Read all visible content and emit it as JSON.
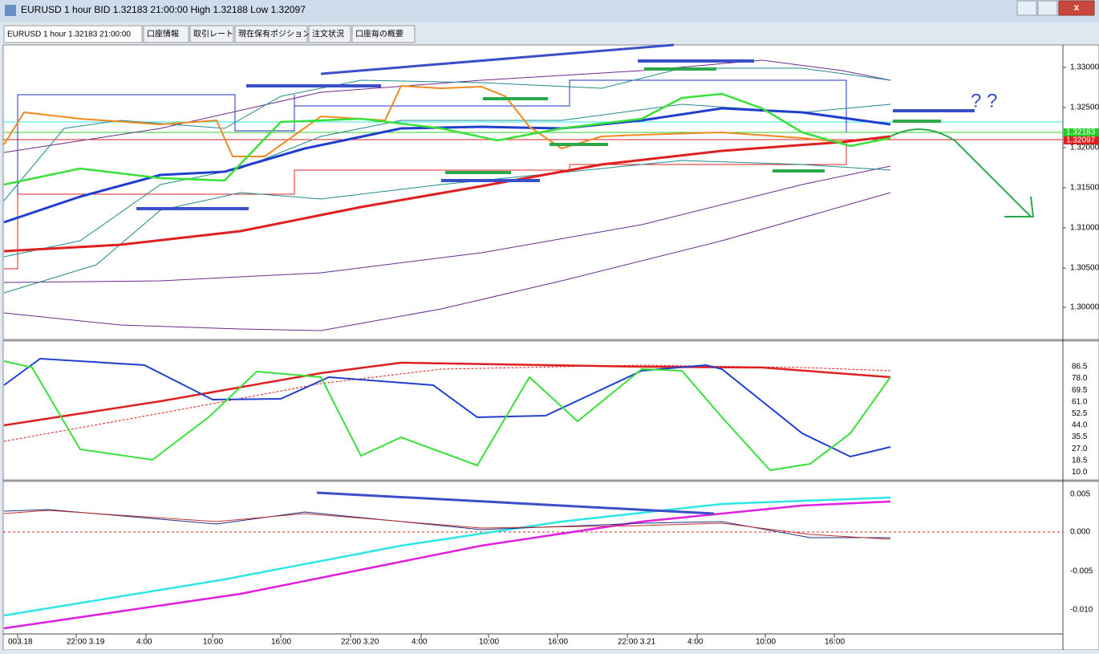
{
  "window": {
    "title": "EURUSD 1 hour BID 1.32183 21:00:00 High 1.32188 Low 1.32097"
  },
  "tabs": [
    "EURUSD 1 hour 1.32183 21:00:00",
    "口座情報",
    "取引レート",
    "現在保有ポジション",
    "注文状況",
    "口座毎の概要"
  ],
  "price_axis": [
    "1.33000",
    "1.32500",
    "1.32000",
    "1.31500",
    "1.31000",
    "1.30500",
    "1.30000"
  ],
  "price_markers": {
    "bid": "1.32183",
    "low": "1.32097"
  },
  "stoch_axis": [
    "86.5",
    "78.0",
    "69.5",
    "61.0",
    "52.5",
    "44.0",
    "35.5",
    "27.0",
    "18.5",
    "10.0"
  ],
  "macd_axis": [
    "0.005",
    "0.000",
    "-0.005",
    "-0.010"
  ],
  "time_axis": [
    "003.18",
    "22:00 3.19",
    "4:00",
    "10:00",
    "16:00",
    "22:00 3.20",
    "4:00",
    "10:00",
    "16:00",
    "22:00 3.21",
    "4:00",
    "10:00",
    "16:00"
  ],
  "annotation": "? ?"
}
